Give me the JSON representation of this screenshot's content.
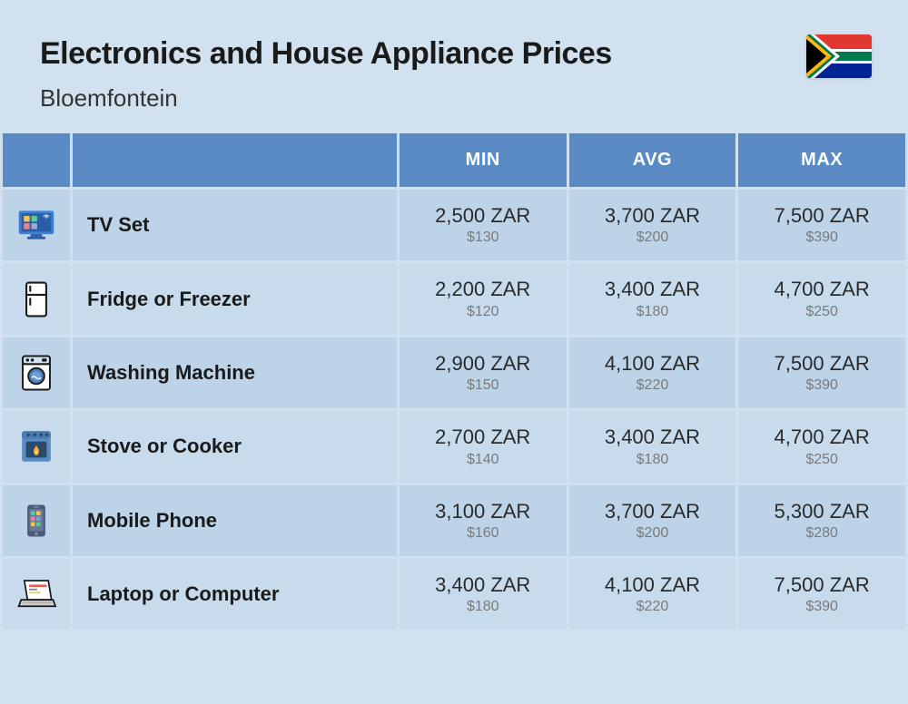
{
  "header": {
    "title": "Electronics and House Appliance Prices",
    "subtitle": "Bloemfontein"
  },
  "columns": {
    "min": "MIN",
    "avg": "AVG",
    "max": "MAX"
  },
  "styling": {
    "page_bg": "#d2e1f0",
    "header_cell_bg": "#5a8bc4",
    "header_text_color": "#ffffff",
    "row_bg_odd": "#bdd3e8",
    "row_bg_even": "#c8dbed",
    "title_fontsize": 34,
    "subtitle_fontsize": 26,
    "col_header_fontsize": 20,
    "name_fontsize": 22,
    "zar_fontsize": 22,
    "usd_fontsize": 16,
    "zar_color": "#2a2a2a",
    "usd_color": "#7a7a7a",
    "cell_spacing": 3,
    "icon_col_width": 74
  },
  "flag": {
    "country": "South Africa",
    "colors": {
      "red": "#de3831",
      "blue": "#002395",
      "green": "#007a4d",
      "yellow": "#ffb612",
      "black": "#000000",
      "white": "#ffffff"
    }
  },
  "rows": [
    {
      "icon": "tv",
      "name": "TV Set",
      "min_zar": "2,500 ZAR",
      "min_usd": "$130",
      "avg_zar": "3,700 ZAR",
      "avg_usd": "$200",
      "max_zar": "7,500 ZAR",
      "max_usd": "$390"
    },
    {
      "icon": "fridge",
      "name": "Fridge or Freezer",
      "min_zar": "2,200 ZAR",
      "min_usd": "$120",
      "avg_zar": "3,400 ZAR",
      "avg_usd": "$180",
      "max_zar": "4,700 ZAR",
      "max_usd": "$250"
    },
    {
      "icon": "washer",
      "name": "Washing Machine",
      "min_zar": "2,900 ZAR",
      "min_usd": "$150",
      "avg_zar": "4,100 ZAR",
      "avg_usd": "$220",
      "max_zar": "7,500 ZAR",
      "max_usd": "$390"
    },
    {
      "icon": "stove",
      "name": "Stove or Cooker",
      "min_zar": "2,700 ZAR",
      "min_usd": "$140",
      "avg_zar": "3,400 ZAR",
      "avg_usd": "$180",
      "max_zar": "4,700 ZAR",
      "max_usd": "$250"
    },
    {
      "icon": "phone",
      "name": "Mobile Phone",
      "min_zar": "3,100 ZAR",
      "min_usd": "$160",
      "avg_zar": "3,700 ZAR",
      "avg_usd": "$200",
      "max_zar": "5,300 ZAR",
      "max_usd": "$280"
    },
    {
      "icon": "laptop",
      "name": "Laptop or Computer",
      "min_zar": "3,400 ZAR",
      "min_usd": "$180",
      "avg_zar": "4,100 ZAR",
      "avg_usd": "$220",
      "max_zar": "7,500 ZAR",
      "max_usd": "$390"
    }
  ],
  "icon_colors": {
    "tv": {
      "body": "#3b82d6",
      "screen": "#2a5ea8",
      "accent1": "#f6c453",
      "accent2": "#5ac89b",
      "accent3": "#e8868f"
    },
    "fridge": {
      "stroke": "#1a1a1a",
      "fill": "#ffffff"
    },
    "washer": {
      "body": "#ffffff",
      "stroke": "#1a1a1a",
      "porthole": "#4a7fb8",
      "panel": "#d4e3f2"
    },
    "stove": {
      "body": "#5a8bc4",
      "door": "#2a4a6a",
      "flame_outer": "#f29b3a",
      "flame_inner": "#f6d353"
    },
    "phone": {
      "body": "#4a5a78",
      "screen": "#6a7a98",
      "accent1": "#5ac89b",
      "accent2": "#f6c453",
      "accent3": "#e8868f",
      "accent4": "#8a9ad4"
    },
    "laptop": {
      "base": "#b8b8b8",
      "body": "#ffffff",
      "stroke": "#1a1a1a",
      "accent1": "#e85a5a",
      "accent2": "#f6c453",
      "accent3": "#5a8bc4"
    }
  }
}
